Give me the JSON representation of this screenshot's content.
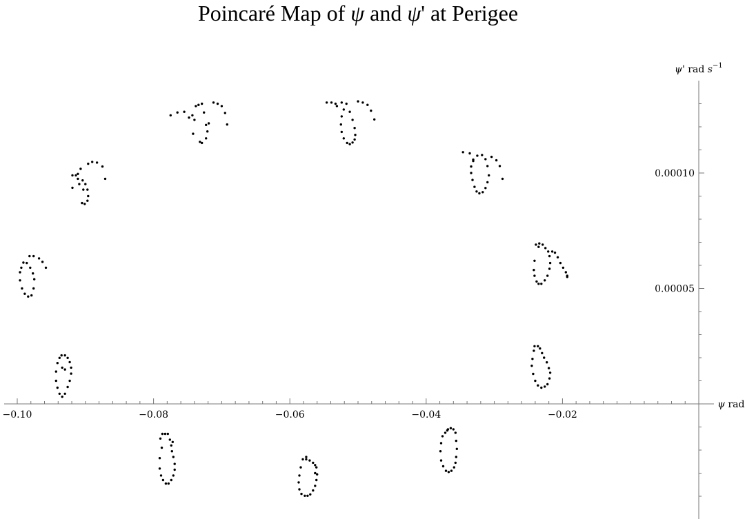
{
  "chart_data": {
    "type": "scatter",
    "title_parts": {
      "prefix": "Poincaré Map of ",
      "var1": "ψ",
      "mid": " and ",
      "var2": "ψ",
      "suffix": "' at Perigee"
    },
    "xlabel": {
      "symbol": "ψ",
      "unit": " rad"
    },
    "ylabel": {
      "symbol": "ψ",
      "unit": "' rad ",
      "unit_s": "s",
      "unit_exp": "−1"
    },
    "x_ticks": [
      "−0.10",
      "−0.08",
      "−0.06",
      "−0.04",
      "−0.02"
    ],
    "x_tick_values": [
      -0.1,
      -0.08,
      -0.06,
      -0.04,
      -0.02
    ],
    "y_ticks": [
      "0.00005",
      "0.00010"
    ],
    "y_tick_values": [
      5e-05,
      0.0001
    ],
    "xlim": [
      -0.1017,
      0.0025
    ],
    "ylim": [
      -4.1e-05,
      0.00014
    ],
    "grid": false,
    "marker_color": "#000000",
    "series": [
      {
        "cluster": 1,
        "x": [
          -0.0935,
          -0.093,
          -0.0926,
          -0.0923,
          -0.0921,
          -0.0921,
          -0.0923,
          -0.0926,
          -0.093,
          -0.0934,
          -0.0938,
          -0.0941,
          -0.0943,
          -0.0943,
          -0.0941,
          -0.0938,
          -0.0934,
          -0.093
        ],
        "y": [
          2.1e-05,
          2.1e-05,
          1.99e-05,
          1.81e-05,
          1.57e-05,
          1.31e-05,
          1e-05,
          7.3e-06,
          4.4e-06,
          3.1e-06,
          4.4e-06,
          7e-06,
          1e-05,
          1.4e-05,
          1.77e-05,
          1.99e-05,
          1.57e-05,
          1.49e-05
        ]
      },
      {
        "cluster": 2,
        "x": [
          -0.0996,
          -0.0996,
          -0.0993,
          -0.0989,
          -0.0984,
          -0.0979,
          -0.0976,
          -0.0975,
          -0.0977,
          -0.0981,
          -0.0986,
          -0.0991,
          -0.0982,
          -0.0976,
          -0.0968,
          -0.0963,
          -0.0958,
          -0.0994
        ],
        "y": [
          5.7e-05,
          5.35e-05,
          5e-05,
          4.77e-05,
          4.65e-05,
          4.7e-05,
          5e-05,
          5.4e-05,
          5.65e-05,
          5.9e-05,
          6.1e-05,
          6.12e-05,
          6.4e-05,
          6.4e-05,
          6.3e-05,
          6.15e-05,
          5.9e-05,
          5.9e-05
        ]
      },
      {
        "cluster": 3,
        "x": [
          -0.0919,
          -0.0914,
          -0.0911,
          -0.0909,
          -0.0905,
          -0.0901,
          -0.0897,
          -0.0896,
          -0.0897,
          -0.09,
          -0.0904,
          -0.0911,
          -0.0919,
          -0.0907,
          -0.0896,
          -0.089,
          -0.0883,
          -0.0875,
          -0.0871,
          -0.0903
        ],
        "y": [
          9.9e-05,
          9.9e-05,
          9.75e-05,
          9.52e-05,
          8.7e-05,
          8.66e-05,
          8.8e-05,
          9e-05,
          9.28e-05,
          9.52e-05,
          9.68e-05,
          9.96e-05,
          9.36e-05,
          0.0001018,
          0.000104,
          0.0001048,
          0.0001045,
          0.0001028,
          9.75e-05,
          9.28e-05
        ]
      },
      {
        "cluster": 4,
        "x": [
          -0.0775,
          -0.0765,
          -0.0755,
          -0.0748,
          -0.0743,
          -0.0738,
          -0.0734,
          -0.0729,
          -0.0726,
          -0.0723,
          -0.0732,
          -0.0729,
          -0.0723,
          -0.0721,
          -0.0719,
          -0.0712,
          -0.0706,
          -0.07,
          -0.0695,
          -0.0692,
          -0.0742,
          -0.074
        ],
        "y": [
          0.000125,
          0.0001262,
          0.0001265,
          0.000124,
          0.000125,
          0.000129,
          0.0001295,
          0.00013,
          0.0001262,
          0.0001208,
          0.0001135,
          0.000113,
          0.000115,
          0.000118,
          0.0001215,
          0.0001305,
          0.00013,
          0.000129,
          0.000126,
          0.000121,
          0.000117,
          0.000123
        ]
      },
      {
        "cluster": 5,
        "x": [
          -0.079,
          -0.0787,
          -0.0783,
          -0.0779,
          -0.0776,
          -0.0774,
          -0.0773,
          -0.0771,
          -0.0769,
          -0.0769,
          -0.0771,
          -0.0774,
          -0.0778,
          -0.0782,
          -0.0786,
          -0.0789,
          -0.0791,
          -0.0791,
          -0.0788,
          -0.0772
        ],
        "y": [
          -1.5e-05,
          -1.3e-05,
          -1.3e-05,
          -1.3e-05,
          -1.55e-05,
          -1.8e-05,
          -2.05e-05,
          -2.3e-05,
          -2.6e-05,
          -2.85e-05,
          -3.1e-05,
          -3.3e-05,
          -3.45e-05,
          -3.45e-05,
          -3.3e-05,
          -3.1e-05,
          -2.8e-05,
          -2.35e-05,
          -1.9e-05,
          -1.65e-05
        ]
      },
      {
        "cluster": 6,
        "x": [
          -0.0581,
          -0.0576,
          -0.0571,
          -0.0566,
          -0.0563,
          -0.0561,
          -0.056,
          -0.0561,
          -0.0563,
          -0.0566,
          -0.057,
          -0.0574,
          -0.0578,
          -0.0583,
          -0.0586,
          -0.0587,
          -0.0586,
          -0.0584,
          -0.0576,
          -0.0563
        ],
        "y": [
          -2.4e-05,
          -2.3e-05,
          -2.45e-05,
          -2.55e-05,
          -2.65e-05,
          -2.75e-05,
          -3.05e-05,
          -3.3e-05,
          -3.55e-05,
          -3.75e-05,
          -3.92e-05,
          -3.98e-05,
          -3.98e-05,
          -3.9e-05,
          -3.7e-05,
          -3.4e-05,
          -3.1e-05,
          -2.75e-05,
          -2.4e-05,
          -3e-05
        ]
      },
      {
        "cluster": 7,
        "x": [
          -0.0546,
          -0.0539,
          -0.0533,
          -0.0531,
          -0.0524,
          -0.0517,
          -0.0512,
          -0.0508,
          -0.0505,
          -0.0504,
          -0.0505,
          -0.0508,
          -0.0512,
          -0.0516,
          -0.0521,
          -0.0524,
          -0.0525,
          -0.0524,
          -0.0521,
          -0.05,
          -0.0493,
          -0.0486,
          -0.0481,
          -0.0476
        ],
        "y": [
          0.0001305,
          0.0001305,
          0.00013,
          0.000129,
          0.0001305,
          0.00013,
          0.0001265,
          0.000123,
          0.0001195,
          0.0001165,
          0.0001145,
          0.0001132,
          0.0001125,
          0.000113,
          0.000115,
          0.0001178,
          0.000121,
          0.0001245,
          0.0001275,
          0.000131,
          0.0001305,
          0.0001295,
          0.000127,
          0.0001232
        ]
      },
      {
        "cluster": 8,
        "x": [
          -0.0346,
          -0.0336,
          -0.0331,
          -0.0325,
          -0.0318,
          -0.0313,
          -0.031,
          -0.0308,
          -0.031,
          -0.0313,
          -0.0317,
          -0.0322,
          -0.0326,
          -0.0329,
          -0.0332,
          -0.0334,
          -0.0334,
          -0.0331,
          -0.0304,
          -0.0297,
          -0.0292,
          -0.0288
        ],
        "y": [
          0.000109,
          0.0001085,
          0.0001058,
          0.0001075,
          0.0001078,
          0.000106,
          0.000103,
          9.9e-05,
          9.6e-05,
          9.35e-05,
          9.17e-05,
          9.12e-05,
          9.2e-05,
          9.4e-05,
          9.7e-05,
          0.0001,
          0.0001028,
          0.0001052,
          0.000107,
          0.0001055,
          0.000103,
          9.75e-05
        ]
      },
      {
        "cluster": 9,
        "x": [
          -0.0372,
          -0.0368,
          -0.0364,
          -0.036,
          -0.0357,
          -0.0356,
          -0.0355,
          -0.0356,
          -0.0357,
          -0.0359,
          -0.0363,
          -0.0367,
          -0.0371,
          -0.0375,
          -0.0378,
          -0.0379,
          -0.0378,
          -0.0376,
          -0.0369
        ],
        "y": [
          -1.25e-05,
          -1.1e-05,
          -1.05e-05,
          -1.1e-05,
          -1.25e-05,
          -1.6e-05,
          -1.95e-05,
          -2.3e-05,
          -2.55e-05,
          -2.75e-05,
          -2.9e-05,
          -2.95e-05,
          -2.9e-05,
          -2.7e-05,
          -2.45e-05,
          -2.05e-05,
          -1.7e-05,
          -1.4e-05,
          -1.15e-05
        ]
      },
      {
        "cluster": 10,
        "x": [
          -0.0239,
          -0.0234,
          -0.0229,
          -0.0225,
          -0.0221,
          -0.0219,
          -0.0218,
          -0.0219,
          -0.0222,
          -0.0226,
          -0.0231,
          -0.0235,
          -0.0238,
          -0.0241,
          -0.0242,
          -0.0241,
          -0.0215,
          -0.0211,
          -0.0207,
          -0.0203,
          -0.0199,
          -0.0195,
          -0.0193,
          -0.0193,
          -0.0235
        ],
        "y": [
          6.9e-05,
          6.95e-05,
          6.9e-05,
          6.75e-05,
          6.6e-05,
          6.4e-05,
          6.1e-05,
          5.85e-05,
          5.55e-05,
          5.35e-05,
          5.2e-05,
          5.2e-05,
          5.3e-05,
          5.55e-05,
          5.8e-05,
          6.2e-05,
          6.6e-05,
          6.55e-05,
          6.35e-05,
          6.1e-05,
          5.9e-05,
          5.7e-05,
          5.55e-05,
          5.5e-05,
          6.8e-05
        ]
      },
      {
        "cluster": 11,
        "x": [
          -0.0241,
          -0.0236,
          -0.0233,
          -0.023,
          -0.0227,
          -0.0223,
          -0.022,
          -0.0218,
          -0.0219,
          -0.0222,
          -0.0226,
          -0.0231,
          -0.0236,
          -0.024,
          -0.0243,
          -0.0245,
          -0.0244,
          -0.0242
        ],
        "y": [
          2.5e-05,
          2.5e-05,
          2.4e-05,
          2.2e-05,
          2e-05,
          1.8e-05,
          1.55e-05,
          1.35e-05,
          1.1e-05,
          8.5e-06,
          7.5e-06,
          7e-06,
          8e-06,
          1e-05,
          1.3e-05,
          1.65e-05,
          1.95e-05,
          2.3e-05
        ]
      }
    ]
  }
}
